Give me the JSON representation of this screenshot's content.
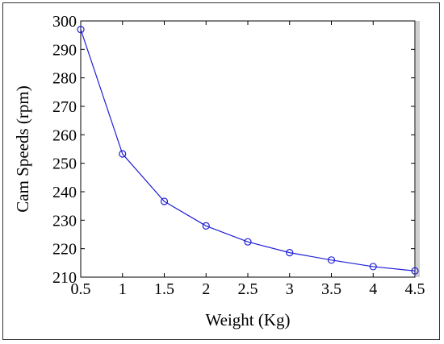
{
  "chart_data": {
    "type": "line",
    "title": "",
    "xlabel": "Weight (Kg)",
    "ylabel": "Cam Speeds (rpm)",
    "xlim": [
      0.5,
      4.5
    ],
    "ylim": [
      210,
      300
    ],
    "x_ticks": [
      "0.5",
      "1",
      "1.5",
      "2",
      "2.5",
      "3",
      "3.5",
      "4",
      "4.5"
    ],
    "y_ticks": [
      "210",
      "220",
      "230",
      "240",
      "250",
      "260",
      "270",
      "280",
      "290",
      "300"
    ],
    "grid": false,
    "marker": "circle",
    "line_color": "#1f1fd6",
    "series": [
      {
        "x": [
          0.5,
          1,
          1.5,
          2,
          2.5,
          3,
          3.5,
          4,
          4.5
        ],
        "y": [
          297,
          253.3,
          236.6,
          228,
          222.4,
          218.6,
          216,
          213.7,
          212.2
        ]
      }
    ]
  }
}
